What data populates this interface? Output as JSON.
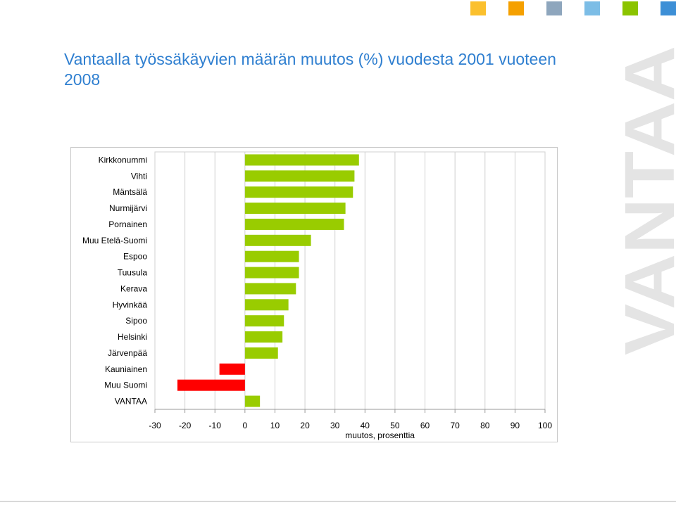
{
  "header": {
    "swatches": [
      "#fbc02d",
      "#f5a000",
      "#8ea6bd",
      "#7cbde6",
      "#8bc400",
      "#3d8fd6"
    ]
  },
  "title": "Vantaalla työssäkäyvien määrän muutos (%) vuodesta 2001 vuoteen 2008",
  "watermark": {
    "text": "VANTAA",
    "color": "#e4e4e4"
  },
  "colors": {
    "positive": "#99cc00",
    "negative": "#ff0000",
    "grid": "#d0d0d0",
    "axis": "#999999",
    "text": "#000000"
  },
  "chart_data": {
    "type": "bar",
    "orientation": "horizontal",
    "categories": [
      "Kirkkonummi",
      "Vihti",
      "Mäntsälä",
      "Nurmijärvi",
      "Pornainen",
      "Muu Etelä-Suomi",
      "Espoo",
      "Tuusula",
      "Kerava",
      "Hyvinkää",
      "Sipoo",
      "Helsinki",
      "Järvenpää",
      "Kauniainen",
      "Muu Suomi",
      "VANTAA"
    ],
    "values": [
      38,
      36.5,
      36,
      33.5,
      33,
      22,
      18,
      18,
      17,
      14.5,
      13,
      12.5,
      11,
      -8.5,
      -22.5,
      5
    ],
    "xlim": [
      -30,
      100
    ],
    "xticks": [
      -30,
      -20,
      -10,
      0,
      10,
      20,
      30,
      40,
      50,
      60,
      70,
      80,
      90,
      100
    ],
    "xlabel": "muutos, prosenttia",
    "ylabel": "",
    "title": "",
    "grid": true,
    "legend": "none"
  }
}
